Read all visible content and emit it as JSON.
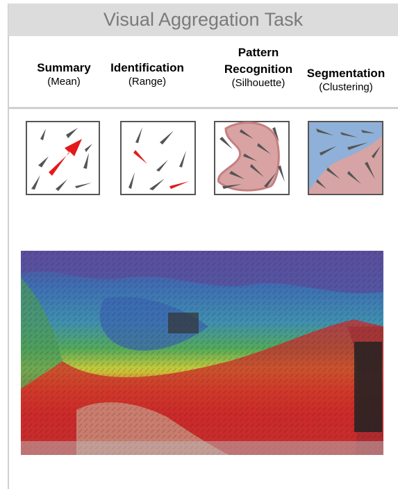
{
  "header": {
    "title": "Visual Aggregation Task"
  },
  "tasks": [
    {
      "title_lines": [
        "Summary"
      ],
      "subtitle": "(Mean)"
    },
    {
      "title_lines": [
        "Identification"
      ],
      "subtitle": "(Range)"
    },
    {
      "title_lines": [
        "Pattern",
        "Recognition"
      ],
      "subtitle": "(Silhouette)"
    },
    {
      "title_lines": [
        "Segmentation"
      ],
      "subtitle": "(Clustering)"
    }
  ]
}
